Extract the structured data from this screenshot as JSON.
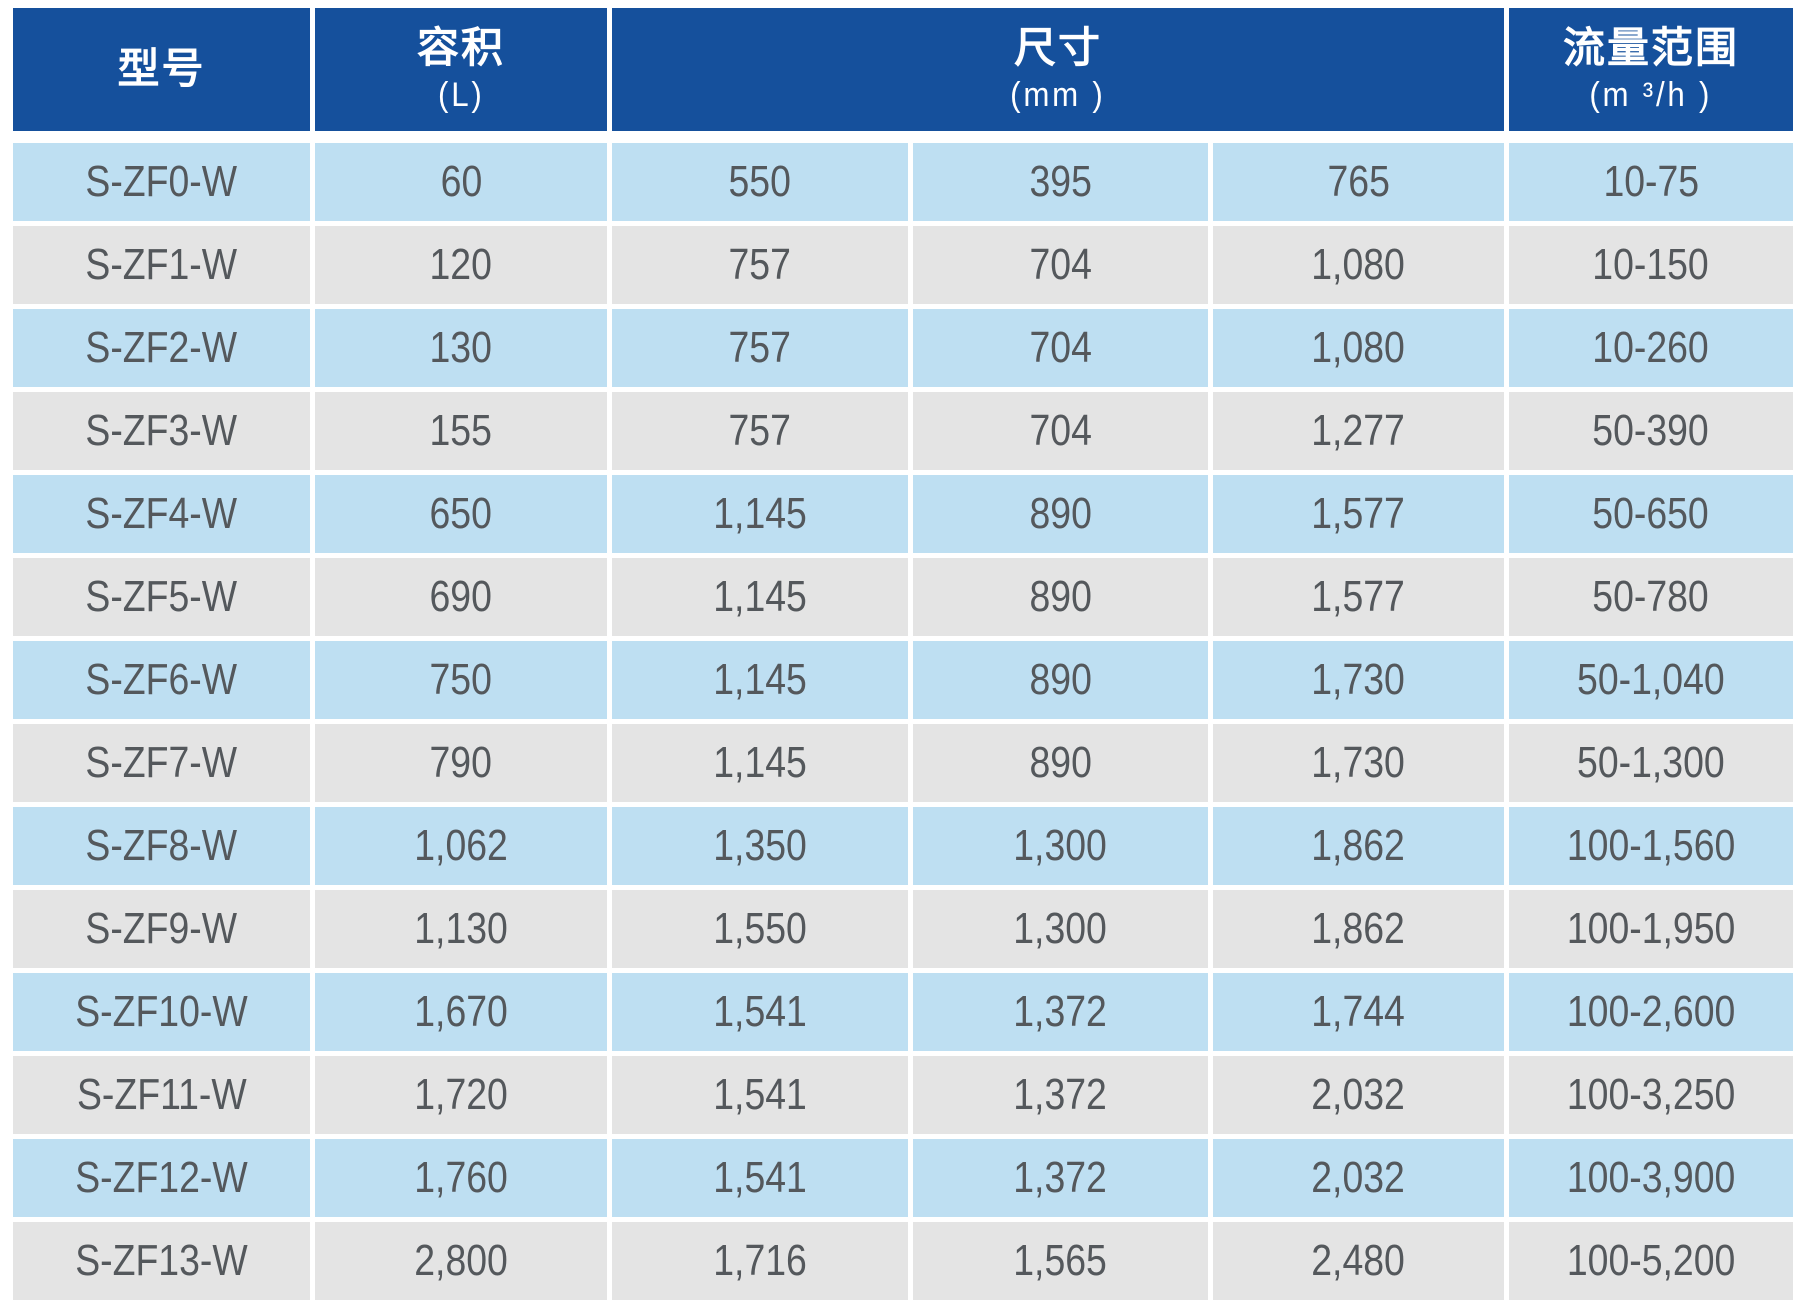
{
  "table": {
    "header": {
      "model": {
        "title": "型号",
        "unit": ""
      },
      "volume": {
        "title": "容积",
        "unit": "(L)"
      },
      "dimensions": {
        "title": "尺寸",
        "unit": "(mm )"
      },
      "flow": {
        "title": "流量范围",
        "unit": "(m ³/h )"
      }
    },
    "rows": [
      {
        "model": "S-ZF0-W",
        "volume": "60",
        "dim1": "550",
        "dim2": "395",
        "dim3": "765",
        "flow": "10-75"
      },
      {
        "model": "S-ZF1-W",
        "volume": "120",
        "dim1": "757",
        "dim2": "704",
        "dim3": "1,080",
        "flow": "10-150"
      },
      {
        "model": "S-ZF2-W",
        "volume": "130",
        "dim1": "757",
        "dim2": "704",
        "dim3": "1,080",
        "flow": "10-260"
      },
      {
        "model": "S-ZF3-W",
        "volume": "155",
        "dim1": "757",
        "dim2": "704",
        "dim3": "1,277",
        "flow": "50-390"
      },
      {
        "model": "S-ZF4-W",
        "volume": "650",
        "dim1": "1,145",
        "dim2": "890",
        "dim3": "1,577",
        "flow": "50-650"
      },
      {
        "model": "S-ZF5-W",
        "volume": "690",
        "dim1": "1,145",
        "dim2": "890",
        "dim3": "1,577",
        "flow": "50-780"
      },
      {
        "model": "S-ZF6-W",
        "volume": "750",
        "dim1": "1,145",
        "dim2": "890",
        "dim3": "1,730",
        "flow": "50-1,040"
      },
      {
        "model": "S-ZF7-W",
        "volume": "790",
        "dim1": "1,145",
        "dim2": "890",
        "dim3": "1,730",
        "flow": "50-1,300"
      },
      {
        "model": "S-ZF8-W",
        "volume": "1,062",
        "dim1": "1,350",
        "dim2": "1,300",
        "dim3": "1,862",
        "flow": "100-1,560"
      },
      {
        "model": "S-ZF9-W",
        "volume": "1,130",
        "dim1": "1,550",
        "dim2": "1,300",
        "dim3": "1,862",
        "flow": "100-1,950"
      },
      {
        "model": "S-ZF10-W",
        "volume": "1,670",
        "dim1": "1,541",
        "dim2": "1,372",
        "dim3": "1,744",
        "flow": "100-2,600"
      },
      {
        "model": "S-ZF11-W",
        "volume": "1,720",
        "dim1": "1,541",
        "dim2": "1,372",
        "dim3": "2,032",
        "flow": "100-3,250"
      },
      {
        "model": "S-ZF12-W",
        "volume": "1,760",
        "dim1": "1,541",
        "dim2": "1,372",
        "dim3": "2,032",
        "flow": "100-3,900"
      },
      {
        "model": "S-ZF13-W",
        "volume": "2,800",
        "dim1": "1,716",
        "dim2": "1,565",
        "dim3": "2,480",
        "flow": "100-5,200"
      }
    ]
  },
  "colors": {
    "header_bg": "#15509c",
    "row_blue": "#bedff2",
    "row_gray": "#e4e4e4",
    "header_text": "#ffffff",
    "cell_text": "#54585c",
    "page_bg": "#ffffff"
  }
}
